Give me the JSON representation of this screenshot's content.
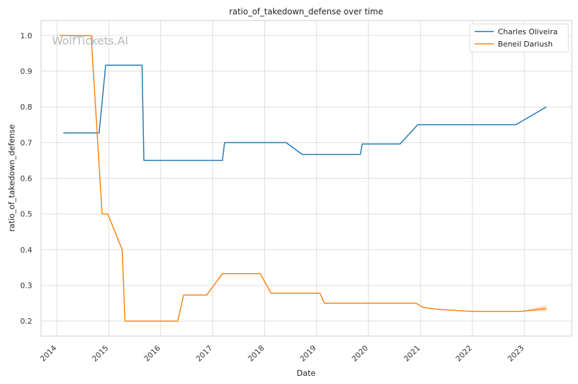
{
  "chart_data": {
    "type": "line",
    "title": "ratio_of_takedown_defense over time",
    "xlabel": "Date",
    "ylabel": "ratio_of_takedown_defense",
    "watermark": "WolfTickets.AI",
    "x_ticks": [
      "2014",
      "2015",
      "2016",
      "2017",
      "2018",
      "2019",
      "2020",
      "2021",
      "2022",
      "2023"
    ],
    "y_ticks": [
      "0.2",
      "0.3",
      "0.4",
      "0.5",
      "0.6",
      "0.7",
      "0.8",
      "0.9",
      "1.0"
    ],
    "xlim": [
      "2013-09-12",
      "2023-12-01"
    ],
    "ylim": [
      0.158,
      1.042
    ],
    "grid": true,
    "legend_position": "top-right",
    "series": [
      {
        "name": "Charles Oliveira",
        "color": "#1f77b4",
        "points": [
          [
            "2014-02-15",
            0.727
          ],
          [
            "2014-10-25",
            0.727
          ],
          [
            "2014-12-10",
            0.917
          ],
          [
            "2015-08-23",
            0.917
          ],
          [
            "2015-09-05",
            0.65
          ],
          [
            "2017-03-10",
            0.65
          ],
          [
            "2017-03-25",
            0.7
          ],
          [
            "2018-06-01",
            0.7
          ],
          [
            "2018-09-22",
            0.667
          ],
          [
            "2019-11-05",
            0.667
          ],
          [
            "2019-11-18",
            0.696
          ],
          [
            "2020-08-10",
            0.696
          ],
          [
            "2020-12-12",
            0.75
          ],
          [
            "2022-11-01",
            0.75
          ],
          [
            "2023-06-05",
            0.8
          ]
        ]
      },
      {
        "name": "Beneil Dariush",
        "color": "#ff7f0e",
        "band": true,
        "points": [
          [
            "2014-01-20",
            1.0
          ],
          [
            "2014-08-30",
            1.0
          ],
          [
            "2014-11-15",
            0.5
          ],
          [
            "2014-12-25",
            0.5
          ],
          [
            "2015-04-05",
            0.4
          ],
          [
            "2015-04-25",
            0.2
          ],
          [
            "2016-04-30",
            0.2
          ],
          [
            "2016-06-10",
            0.273
          ],
          [
            "2016-11-20",
            0.273
          ],
          [
            "2017-03-10",
            0.333
          ],
          [
            "2017-12-01",
            0.333
          ],
          [
            "2018-02-15",
            0.278
          ],
          [
            "2019-01-25",
            0.278
          ],
          [
            "2019-02-25",
            0.25
          ],
          [
            "2020-12-01",
            0.25
          ],
          [
            "2021-01-20",
            0.238
          ],
          [
            "2021-04-30",
            0.233
          ],
          [
            "2021-12-31",
            0.227
          ],
          [
            "2022-12-01",
            0.227
          ],
          [
            "2023-06-05",
            0.235
          ]
        ]
      }
    ]
  }
}
